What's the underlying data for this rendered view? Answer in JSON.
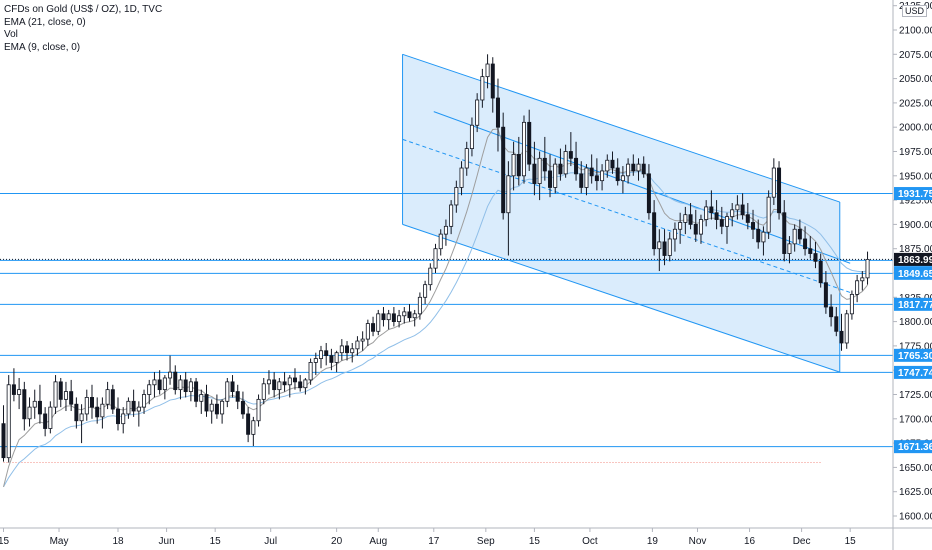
{
  "legend": {
    "line1": "CFDs on Gold (US$ / OZ), 1D, TVC",
    "line2": "EMA (21, close, 0)",
    "line3": "Vol",
    "line4": "EMA (9, close, 0)"
  },
  "currency": "USD",
  "colors": {
    "up": "#131722",
    "down": "#131722",
    "hline": "#2196f3",
    "channel_fill": "#d4e9fb",
    "channel_line": "#2196f3",
    "ema21": "#90bfe8",
    "ema9": "#9e9e9e",
    "badge": "#2196f3",
    "current_badge": "#131722",
    "dotted_red": "#f28b82"
  },
  "chart_data": {
    "type": "candlestick",
    "yaxis": {
      "ticks": [
        1600,
        1625,
        1650,
        1675,
        1700,
        1725,
        1750,
        1775,
        1800,
        1825,
        1850,
        1875,
        1900,
        1925,
        1950,
        1975,
        2000,
        2025,
        2050,
        2075,
        2100,
        2125
      ],
      "tick_labels": [
        "1600.00",
        "1625.00",
        "1650.00",
        "1675.00",
        "1700.00",
        "1725.00",
        "1750.00",
        "1775.00",
        "1800.00",
        "1825.00",
        "1850.00",
        "1875.00",
        "1900.00",
        "1925.00",
        "1950.00",
        "1975.00",
        "2000.00",
        "2025.00",
        "2050.00",
        "2075.00",
        "2100.00",
        "2125.00"
      ],
      "ylim": [
        1590,
        2135
      ]
    },
    "xaxis": {
      "ticks": [
        {
          "label": "15",
          "day": 0
        },
        {
          "label": "May",
          "day": 16
        },
        {
          "label": "18",
          "day": 33
        },
        {
          "label": "Jun",
          "day": 47
        },
        {
          "label": "15",
          "day": 61
        },
        {
          "label": "Jul",
          "day": 77
        },
        {
          "label": "20",
          "day": 96
        },
        {
          "label": "Aug",
          "day": 108
        },
        {
          "label": "17",
          "day": 124
        },
        {
          "label": "Sep",
          "day": 139
        },
        {
          "label": "15",
          "day": 153
        },
        {
          "label": "Oct",
          "day": 169
        },
        {
          "label": "19",
          "day": 187
        },
        {
          "label": "Nov",
          "day": 200
        },
        {
          "label": "16",
          "day": 215
        },
        {
          "label": "Dec",
          "day": 230
        },
        {
          "label": "15",
          "day": 244
        }
      ],
      "xlim": [
        0,
        254
      ]
    },
    "horizontal_levels": [
      {
        "value": 1931.75,
        "label": "1931.75"
      },
      {
        "value": 1863.04,
        "label": "1863.04"
      },
      {
        "value": 1849.65,
        "label": "1849.65"
      },
      {
        "value": 1817.77,
        "label": "1817.77"
      },
      {
        "value": 1765.3,
        "label": "1765.30"
      },
      {
        "value": 1747.74,
        "label": "1747.74"
      },
      {
        "value": 1671.36,
        "label": "1671.36"
      }
    ],
    "current_price": {
      "value": 1863.99,
      "label": "1863.99"
    },
    "dotted_level": {
      "value": 1655,
      "x_from": 0,
      "x_to": 236
    },
    "channel": {
      "upper": [
        [
          115,
          2075
        ],
        [
          241,
          1923
        ]
      ],
      "lower": [
        [
          115,
          1900
        ],
        [
          241,
          1748
        ]
      ],
      "mid": [
        [
          124,
          2016
        ],
        [
          244,
          1860
        ]
      ],
      "fill_to": 241
    },
    "ohlc": [
      [
        1695,
        1714,
        1656,
        1660
      ],
      [
        1660,
        1745,
        1655,
        1735
      ],
      [
        1735,
        1752,
        1718,
        1725
      ],
      [
        1725,
        1742,
        1710,
        1730
      ],
      [
        1730,
        1738,
        1688,
        1700
      ],
      [
        1700,
        1722,
        1692,
        1712
      ],
      [
        1712,
        1730,
        1700,
        1718
      ],
      [
        1718,
        1735,
        1695,
        1705
      ],
      [
        1705,
        1712,
        1682,
        1690
      ],
      [
        1690,
        1718,
        1685,
        1712
      ],
      [
        1712,
        1745,
        1705,
        1738
      ],
      [
        1738,
        1742,
        1712,
        1720
      ],
      [
        1720,
        1738,
        1708,
        1728
      ],
      [
        1728,
        1740,
        1708,
        1715
      ],
      [
        1715,
        1722,
        1690,
        1698
      ],
      [
        1698,
        1715,
        1675,
        1705
      ],
      [
        1705,
        1730,
        1698,
        1722
      ],
      [
        1722,
        1735,
        1700,
        1712
      ],
      [
        1712,
        1722,
        1695,
        1702
      ],
      [
        1702,
        1722,
        1690,
        1715
      ],
      [
        1715,
        1738,
        1710,
        1730
      ],
      [
        1730,
        1735,
        1705,
        1710
      ],
      [
        1710,
        1722,
        1688,
        1695
      ],
      [
        1695,
        1712,
        1685,
        1705
      ],
      [
        1705,
        1722,
        1700,
        1718
      ],
      [
        1718,
        1730,
        1702,
        1708
      ],
      [
        1708,
        1718,
        1692,
        1712
      ],
      [
        1712,
        1730,
        1705,
        1725
      ],
      [
        1725,
        1740,
        1715,
        1735
      ],
      [
        1735,
        1748,
        1722,
        1740
      ],
      [
        1740,
        1750,
        1725,
        1730
      ],
      [
        1730,
        1745,
        1720,
        1742
      ],
      [
        1742,
        1765,
        1735,
        1748
      ],
      [
        1748,
        1755,
        1725,
        1730
      ],
      [
        1730,
        1745,
        1720,
        1740
      ],
      [
        1740,
        1748,
        1722,
        1728
      ],
      [
        1728,
        1742,
        1718,
        1738
      ],
      [
        1738,
        1742,
        1712,
        1718
      ],
      [
        1718,
        1730,
        1705,
        1725
      ],
      [
        1725,
        1735,
        1702,
        1708
      ],
      [
        1708,
        1720,
        1695,
        1715
      ],
      [
        1715,
        1725,
        1700,
        1705
      ],
      [
        1705,
        1720,
        1695,
        1718
      ],
      [
        1718,
        1742,
        1712,
        1738
      ],
      [
        1738,
        1745,
        1722,
        1728
      ],
      [
        1728,
        1735,
        1710,
        1718
      ],
      [
        1718,
        1728,
        1700,
        1705
      ],
      [
        1705,
        1712,
        1676,
        1684
      ],
      [
        1684,
        1702,
        1672,
        1698
      ],
      [
        1698,
        1725,
        1692,
        1720
      ],
      [
        1720,
        1742,
        1715,
        1736
      ],
      [
        1736,
        1750,
        1725,
        1740
      ],
      [
        1740,
        1748,
        1722,
        1730
      ],
      [
        1730,
        1742,
        1720,
        1738
      ],
      [
        1738,
        1748,
        1728,
        1735
      ],
      [
        1735,
        1745,
        1722,
        1742
      ],
      [
        1742,
        1752,
        1730,
        1738
      ],
      [
        1738,
        1745,
        1728,
        1732
      ],
      [
        1732,
        1742,
        1725,
        1740
      ],
      [
        1740,
        1762,
        1735,
        1758
      ],
      [
        1758,
        1768,
        1745,
        1762
      ],
      [
        1762,
        1775,
        1752,
        1770
      ],
      [
        1770,
        1778,
        1755,
        1765
      ],
      [
        1765,
        1772,
        1750,
        1758
      ],
      [
        1758,
        1770,
        1748,
        1768
      ],
      [
        1768,
        1782,
        1760,
        1775
      ],
      [
        1775,
        1780,
        1760,
        1768
      ],
      [
        1768,
        1778,
        1758,
        1772
      ],
      [
        1772,
        1785,
        1765,
        1780
      ],
      [
        1780,
        1790,
        1770,
        1782
      ],
      [
        1782,
        1802,
        1775,
        1798
      ],
      [
        1798,
        1805,
        1785,
        1790
      ],
      [
        1790,
        1812,
        1786,
        1808
      ],
      [
        1808,
        1815,
        1795,
        1802
      ],
      [
        1802,
        1812,
        1792,
        1808
      ],
      [
        1808,
        1815,
        1795,
        1800
      ],
      [
        1800,
        1812,
        1794,
        1806
      ],
      [
        1806,
        1815,
        1798,
        1810
      ],
      [
        1810,
        1818,
        1800,
        1804
      ],
      [
        1804,
        1812,
        1795,
        1808
      ],
      [
        1808,
        1830,
        1802,
        1825
      ],
      [
        1825,
        1842,
        1818,
        1838
      ],
      [
        1838,
        1860,
        1832,
        1855
      ],
      [
        1855,
        1880,
        1850,
        1875
      ],
      [
        1875,
        1895,
        1868,
        1890
      ],
      [
        1890,
        1905,
        1878,
        1898
      ],
      [
        1898,
        1925,
        1890,
        1920
      ],
      [
        1920,
        1945,
        1912,
        1938
      ],
      [
        1938,
        1965,
        1930,
        1958
      ],
      [
        1958,
        1985,
        1950,
        1978
      ],
      [
        1978,
        2010,
        1970,
        2002
      ],
      [
        2002,
        2035,
        1995,
        2028
      ],
      [
        2028,
        2060,
        2020,
        2052
      ],
      [
        2052,
        2075,
        2040,
        2065
      ],
      [
        2065,
        2072,
        2015,
        2030
      ],
      [
        2030,
        2050,
        1975,
        2000
      ],
      [
        2000,
        2015,
        1905,
        1912
      ],
      [
        1912,
        1965,
        1868,
        1950
      ],
      [
        1950,
        1985,
        1935,
        1972
      ],
      [
        1972,
        1990,
        1940,
        1950
      ],
      [
        1950,
        2012,
        1942,
        2005
      ],
      [
        2005,
        2018,
        1955,
        1962
      ],
      [
        1962,
        1985,
        1930,
        1942
      ],
      [
        1942,
        1975,
        1925,
        1968
      ],
      [
        1968,
        1990,
        1945,
        1955
      ],
      [
        1955,
        1972,
        1928,
        1938
      ],
      [
        1938,
        1968,
        1932,
        1962
      ],
      [
        1962,
        1978,
        1945,
        1952
      ],
      [
        1952,
        1982,
        1948,
        1975
      ],
      [
        1975,
        1995,
        1960,
        1968
      ],
      [
        1968,
        1985,
        1945,
        1952
      ],
      [
        1952,
        1965,
        1932,
        1938
      ],
      [
        1938,
        1962,
        1930,
        1958
      ],
      [
        1958,
        1972,
        1942,
        1950
      ],
      [
        1950,
        1968,
        1935,
        1945
      ],
      [
        1945,
        1962,
        1935,
        1955
      ],
      [
        1955,
        1972,
        1948,
        1966
      ],
      [
        1966,
        1975,
        1952,
        1958
      ],
      [
        1958,
        1968,
        1940,
        1945
      ],
      [
        1945,
        1960,
        1932,
        1950
      ],
      [
        1950,
        1968,
        1942,
        1962
      ],
      [
        1962,
        1972,
        1950,
        1955
      ],
      [
        1955,
        1968,
        1945,
        1962
      ],
      [
        1962,
        1970,
        1948,
        1952
      ],
      [
        1952,
        1962,
        1905,
        1912
      ],
      [
        1912,
        1925,
        1868,
        1875
      ],
      [
        1875,
        1895,
        1852,
        1882
      ],
      [
        1882,
        1895,
        1858,
        1868
      ],
      [
        1868,
        1892,
        1862,
        1885
      ],
      [
        1885,
        1902,
        1872,
        1895
      ],
      [
        1895,
        1912,
        1880,
        1902
      ],
      [
        1902,
        1918,
        1890,
        1910
      ],
      [
        1910,
        1922,
        1895,
        1900
      ],
      [
        1900,
        1915,
        1882,
        1890
      ],
      [
        1890,
        1910,
        1880,
        1905
      ],
      [
        1905,
        1925,
        1898,
        1918
      ],
      [
        1918,
        1935,
        1905,
        1912
      ],
      [
        1912,
        1925,
        1895,
        1905
      ],
      [
        1905,
        1918,
        1890,
        1898
      ],
      [
        1898,
        1912,
        1880,
        1908
      ],
      [
        1908,
        1922,
        1898,
        1915
      ],
      [
        1915,
        1930,
        1905,
        1920
      ],
      [
        1920,
        1932,
        1905,
        1910
      ],
      [
        1910,
        1922,
        1895,
        1902
      ],
      [
        1902,
        1915,
        1885,
        1895
      ],
      [
        1895,
        1905,
        1875,
        1882
      ],
      [
        1882,
        1898,
        1868,
        1892
      ],
      [
        1892,
        1935,
        1885,
        1928
      ],
      [
        1928,
        1968,
        1920,
        1958
      ],
      [
        1958,
        1965,
        1905,
        1912
      ],
      [
        1912,
        1925,
        1862,
        1870
      ],
      [
        1870,
        1888,
        1860,
        1880
      ],
      [
        1880,
        1900,
        1872,
        1895
      ],
      [
        1895,
        1905,
        1880,
        1885
      ],
      [
        1885,
        1898,
        1868,
        1875
      ],
      [
        1875,
        1888,
        1865,
        1870
      ],
      [
        1870,
        1882,
        1855,
        1862
      ],
      [
        1862,
        1870,
        1835,
        1840
      ],
      [
        1840,
        1852,
        1808,
        1815
      ],
      [
        1815,
        1828,
        1795,
        1805
      ],
      [
        1805,
        1815,
        1785,
        1790
      ],
      [
        1790,
        1808,
        1770,
        1778
      ],
      [
        1778,
        1812,
        1772,
        1808
      ],
      [
        1808,
        1832,
        1802,
        1828
      ],
      [
        1828,
        1848,
        1820,
        1842
      ],
      [
        1842,
        1852,
        1832,
        1845
      ],
      [
        1845,
        1872,
        1838,
        1864
      ]
    ]
  }
}
